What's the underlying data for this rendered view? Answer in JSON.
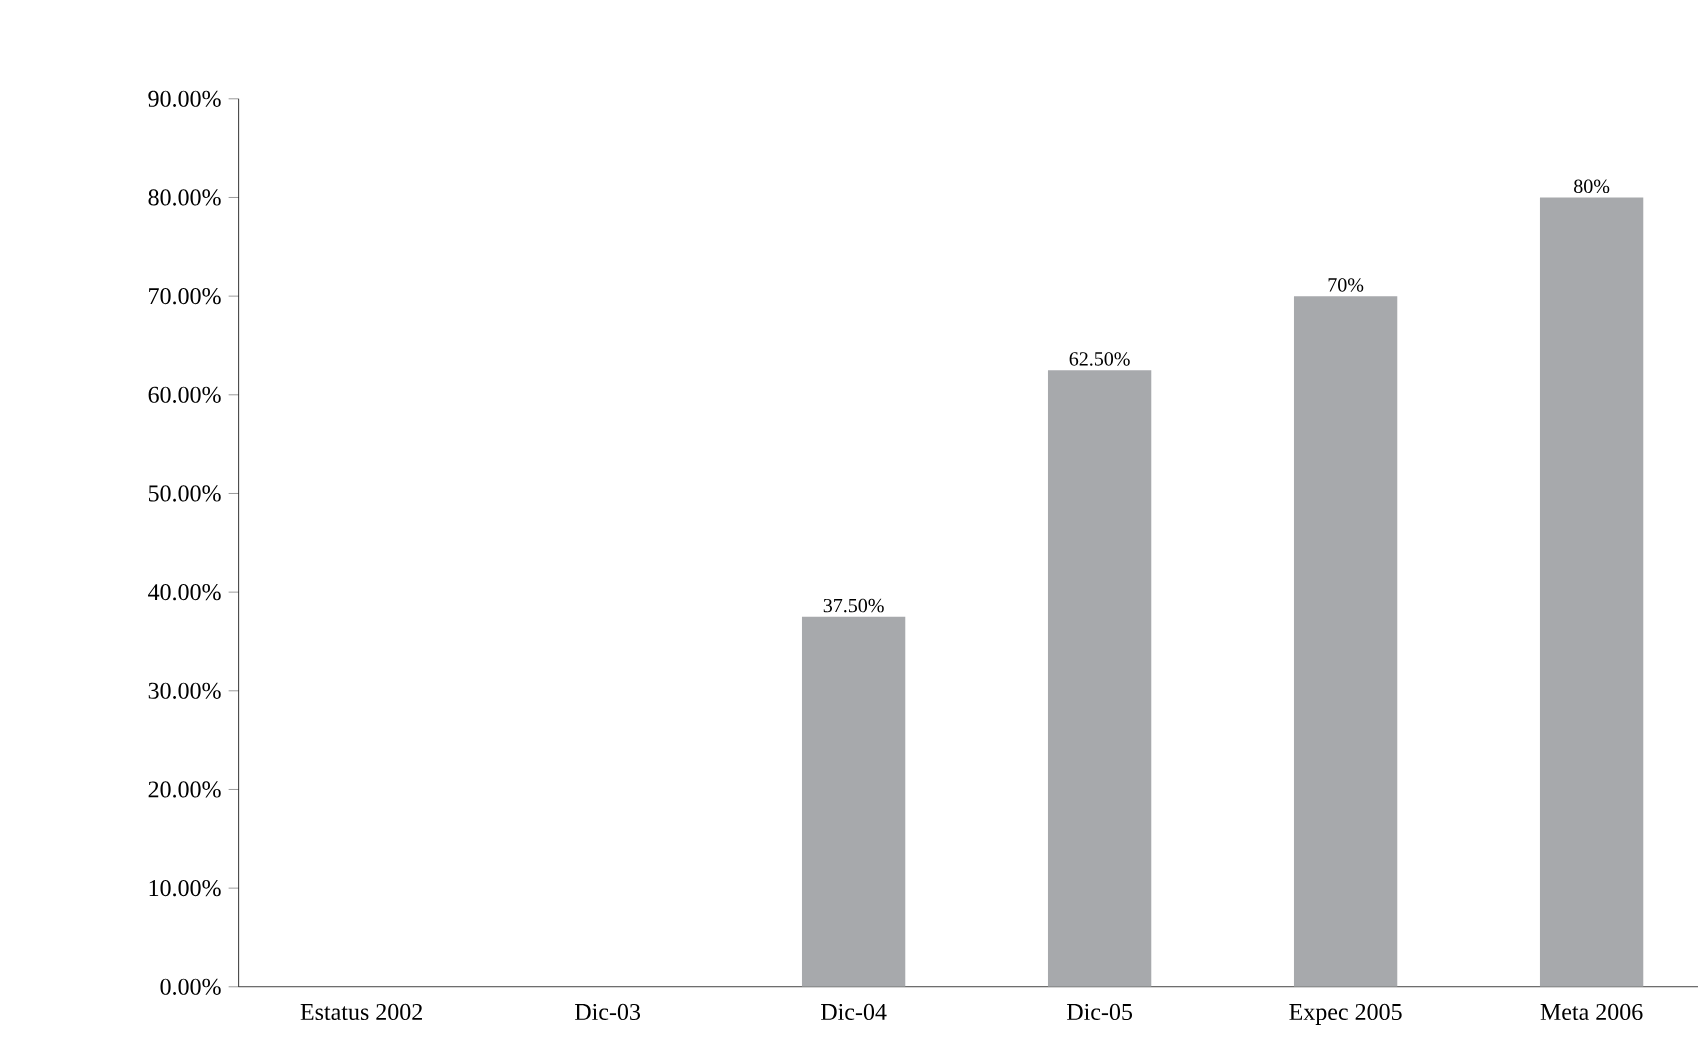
{
  "chart_data": {
    "type": "bar",
    "categories": [
      "Estatus 2002",
      "Dic-03",
      "Dic-04",
      "Dic-05",
      "Expec 2005",
      "Meta 2006"
    ],
    "values": [
      null,
      null,
      37.5,
      62.5,
      70,
      80
    ],
    "value_labels": [
      null,
      null,
      "37.50%",
      "62.50%",
      "70%",
      "80%"
    ],
    "color": "#a7a9ac",
    "ylim": [
      0,
      90
    ],
    "yticks": [
      {
        "value": 0,
        "label": "0.00%"
      },
      {
        "value": 10,
        "label": "10.00%"
      },
      {
        "value": 20,
        "label": "20.00%"
      },
      {
        "value": 30,
        "label": "30.00%"
      },
      {
        "value": 40,
        "label": "40.00%"
      },
      {
        "value": 50,
        "label": "50.00%"
      },
      {
        "value": 60,
        "label": "60.00%"
      },
      {
        "value": 70,
        "label": "70.00%"
      },
      {
        "value": 80,
        "label": "80.00%"
      },
      {
        "value": 90,
        "label": "90.00%"
      }
    ]
  }
}
